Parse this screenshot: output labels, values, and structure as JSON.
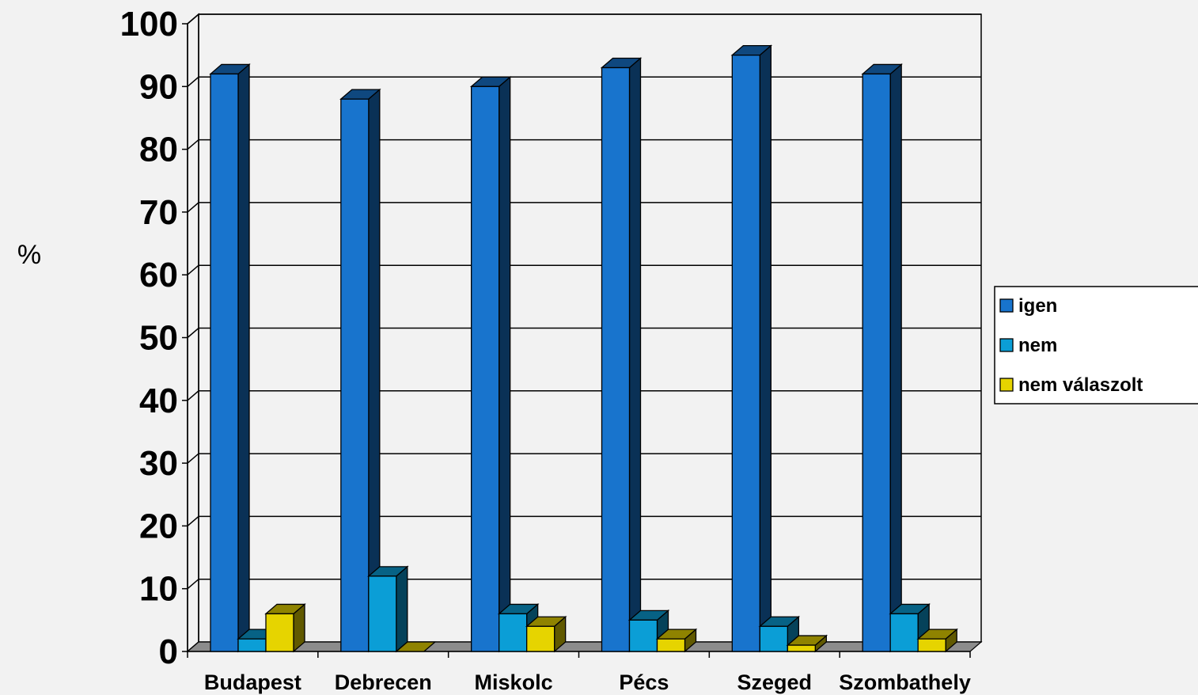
{
  "chart_data": {
    "type": "bar",
    "title": "",
    "xlabel": "",
    "ylabel": "%",
    "ylim": [
      0,
      100
    ],
    "yticks": [
      0,
      10,
      20,
      30,
      40,
      50,
      60,
      70,
      80,
      90,
      100
    ],
    "grid": true,
    "legend_position": "right",
    "categories": [
      "Budapest",
      "Debrecen",
      "Miskolc",
      "Pécs",
      "Szeged",
      "Szombathely"
    ],
    "series": [
      {
        "name": "igen",
        "color": "#1874cd",
        "values": [
          92,
          88,
          90,
          93,
          95,
          92
        ]
      },
      {
        "name": "nem",
        "color": "#0b9ed6",
        "values": [
          2,
          12,
          6,
          5,
          4,
          6
        ]
      },
      {
        "name": "nem válaszolt",
        "color": "#e6d400",
        "values": [
          6,
          0,
          4,
          2,
          1,
          2
        ]
      }
    ]
  }
}
